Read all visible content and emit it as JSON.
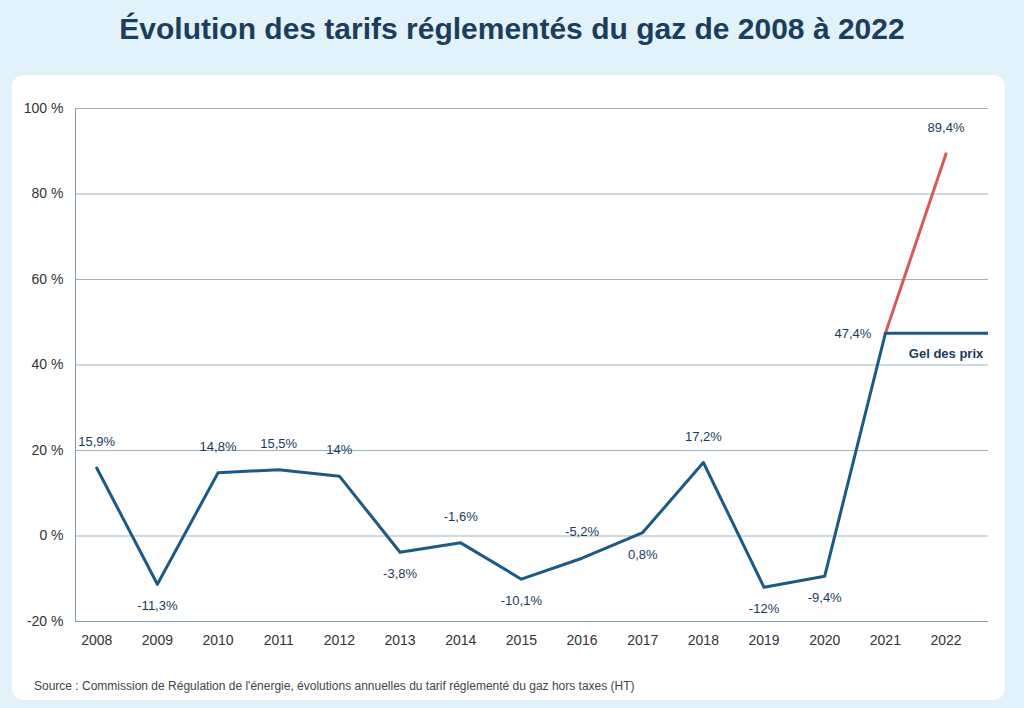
{
  "chart_data": {
    "type": "line",
    "title": "Évolution des tarifs réglementés du gaz de 2008 à 2022",
    "caption": "Source : Commission de Régulation de l'énergie, évolutions annuelles du tarif réglementé du gaz hors taxes (HT)",
    "x": [
      2008,
      2009,
      2010,
      2011,
      2012,
      2013,
      2014,
      2015,
      2016,
      2017,
      2018,
      2019,
      2020,
      2021,
      2022
    ],
    "xlim": [
      2007.65,
      2022.7
    ],
    "xticks": [
      2008,
      2009,
      2010,
      2011,
      2012,
      2013,
      2014,
      2015,
      2016,
      2017,
      2018,
      2019,
      2020,
      2021,
      2022
    ],
    "ylim": [
      -20,
      100
    ],
    "yticks": [
      {
        "value": -20,
        "label": "-20 %"
      },
      {
        "value": 0,
        "label": "0 %"
      },
      {
        "value": 20,
        "label": "20 %"
      },
      {
        "value": 40,
        "label": "40 %"
      },
      {
        "value": 60,
        "label": "60 %"
      },
      {
        "value": 80,
        "label": "80 %"
      },
      {
        "value": 100,
        "label": "100 %"
      }
    ],
    "grid": true,
    "data_labels": true,
    "series": [
      {
        "color": "#1c5a86",
        "values": [
          15.9,
          -11.3,
          14.8,
          15.5,
          14,
          -3.8,
          -1.6,
          -10.1,
          -5.2,
          0.8,
          17.2,
          -12,
          -9.4,
          47.4,
          null
        ],
        "value_labels": [
          "15,9%",
          "-11,3%",
          "14,8%",
          "15,5%",
          "14%",
          "-3,8%",
          "-1,6%",
          "-10,1%",
          "-5,2%",
          "0,8%",
          "17,2%",
          "-12%",
          "-9,4%",
          "47,4%",
          null
        ]
      },
      {
        "color": "#d9585a",
        "values": [
          null,
          null,
          null,
          null,
          null,
          null,
          null,
          null,
          null,
          null,
          null,
          null,
          null,
          47.4,
          89.4
        ],
        "value_labels": [
          null,
          null,
          null,
          null,
          null,
          null,
          null,
          null,
          null,
          null,
          null,
          null,
          null,
          null,
          "89,4%"
        ]
      },
      {
        "name": "Gel des prix",
        "color": "#1c5a86",
        "values": [
          null,
          null,
          null,
          null,
          null,
          null,
          null,
          null,
          null,
          null,
          null,
          null,
          null,
          47.4,
          47.4
        ]
      }
    ]
  }
}
